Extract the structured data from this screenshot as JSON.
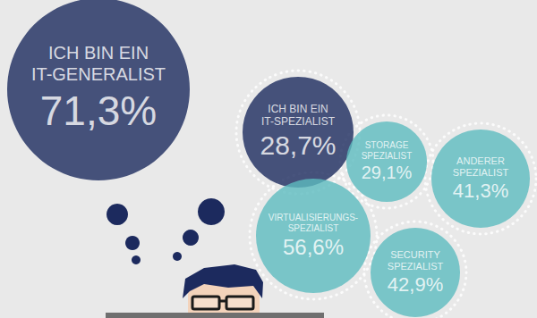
{
  "chart_data": {
    "type": "bubble",
    "categories": [
      "ICH BIN EIN IT-GENERALIST",
      "ICH BIN EIN IT-SPEZIALIST",
      "STORAGE SPEZIALIST",
      "ANDERER SPEZIALIST",
      "VIRTUALISIERUNGS-SPEZIALIST",
      "SECURITY SPEZIALIST"
    ],
    "values": [
      71.3,
      28.7,
      29.1,
      41.3,
      56.6,
      42.9
    ],
    "value_labels": [
      "71,3%",
      "28,7%",
      "29,1%",
      "41,3%",
      "56,6%",
      "42,9%"
    ],
    "colors": [
      "#1c2a5e",
      "#1c2a5e",
      "#5cbcbf",
      "#5cbcbf",
      "#5cbcbf",
      "#5cbcbf"
    ],
    "data_labels": true
  }
}
